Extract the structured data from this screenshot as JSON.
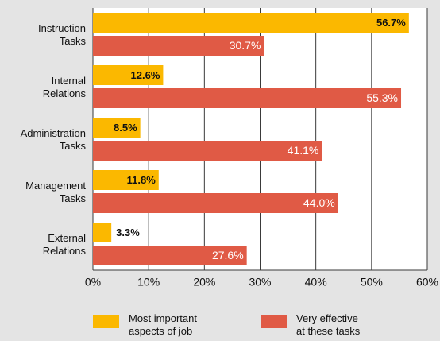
{
  "chart_data": {
    "type": "bar",
    "orientation": "horizontal",
    "categories": [
      "Instruction Tasks",
      "Internal Relations",
      "Administration Tasks",
      "Management Tasks",
      "External Relations"
    ],
    "series": [
      {
        "name": "Most important aspects of job",
        "color": "#fbb800",
        "values": [
          56.7,
          12.6,
          8.5,
          11.8,
          3.3
        ],
        "value_labels": [
          "56.7%",
          "12.6%",
          "8.5%",
          "11.8%",
          "3.3%"
        ]
      },
      {
        "name": "Very effective at these tasks",
        "color": "#e05a45",
        "values": [
          30.7,
          55.3,
          41.1,
          44.0,
          27.6
        ],
        "value_labels": [
          "30.7%",
          "55.3%",
          "41.1%",
          "44.0%",
          "27.6%"
        ]
      }
    ],
    "xlim": [
      0,
      60
    ],
    "xticks": [
      {
        "value": 0,
        "label": "0%"
      },
      {
        "value": 10,
        "label": "10%"
      },
      {
        "value": 20,
        "label": "20%"
      },
      {
        "value": 30,
        "label": "30%"
      },
      {
        "value": 40,
        "label": "40%"
      },
      {
        "value": 50,
        "label": "50%"
      },
      {
        "value": 60,
        "label": "60%"
      }
    ],
    "grid": true,
    "legend": "bottom"
  }
}
